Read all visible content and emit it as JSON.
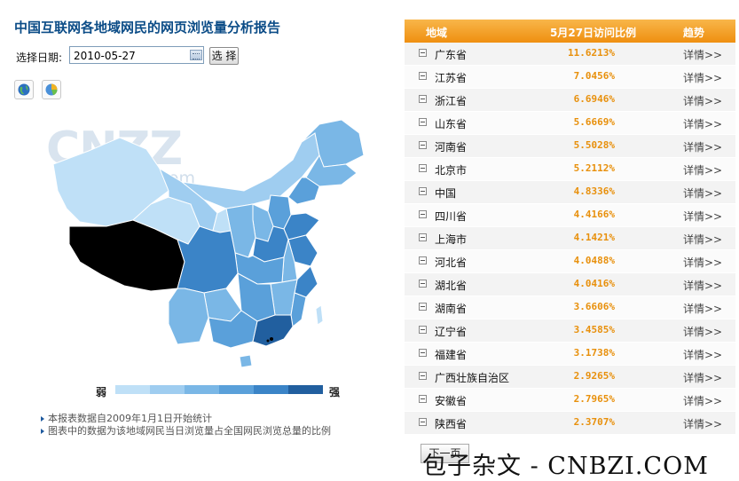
{
  "page": {
    "title": "中国互联网各地域网民的网页浏览量分析报告",
    "date_label": "选择日期:",
    "date_value": "2010-05-27",
    "select_button": "选 择"
  },
  "map": {
    "watermark_logo": "CNZZ",
    "watermark_url": "www.cnzz.com",
    "legend_weak": "弱",
    "legend_strong": "强",
    "legend_colors": [
      "#bfe0f7",
      "#9fcdf0",
      "#7ab7e6",
      "#5aa0da",
      "#3b84c7",
      "#215f9f"
    ],
    "highlight_color": "#000000"
  },
  "notes": [
    "本报表数据自2009年1月1日开始统计",
    "图表中的数据为该地域网民当日浏览量占全国网民浏览总量的比例"
  ],
  "table": {
    "headers": {
      "region": "地域",
      "ratio": "5月27日访问比例",
      "trend": "趋势"
    },
    "rows": [
      {
        "region": "广东省",
        "pct": "11.6213%",
        "trend": "详情>>"
      },
      {
        "region": "江苏省",
        "pct": "7.0456%",
        "trend": "详情>>"
      },
      {
        "region": "浙江省",
        "pct": "6.6946%",
        "trend": "详情>>"
      },
      {
        "region": "山东省",
        "pct": "5.6669%",
        "trend": "详情>>"
      },
      {
        "region": "河南省",
        "pct": "5.5028%",
        "trend": "详情>>"
      },
      {
        "region": "北京市",
        "pct": "5.2112%",
        "trend": "详情>>"
      },
      {
        "region": "中国",
        "pct": "4.8336%",
        "trend": "详情>>"
      },
      {
        "region": "四川省",
        "pct": "4.4166%",
        "trend": "详情>>"
      },
      {
        "region": "上海市",
        "pct": "4.1421%",
        "trend": "详情>>"
      },
      {
        "region": "河北省",
        "pct": "4.0488%",
        "trend": "详情>>"
      },
      {
        "region": "湖北省",
        "pct": "4.0416%",
        "trend": "详情>>"
      },
      {
        "region": "湖南省",
        "pct": "3.6606%",
        "trend": "详情>>"
      },
      {
        "region": "辽宁省",
        "pct": "3.4585%",
        "trend": "详情>>"
      },
      {
        "region": "福建省",
        "pct": "3.1738%",
        "trend": "详情>>"
      },
      {
        "region": "广西壮族自治区",
        "pct": "2.9265%",
        "trend": "详情>>"
      },
      {
        "region": "安徽省",
        "pct": "2.7965%",
        "trend": "详情>>"
      },
      {
        "region": "陕西省",
        "pct": "2.3707%",
        "trend": "详情>>"
      }
    ],
    "pct_color_high": "#e8900c",
    "pct_color_low": "#e8900c",
    "next_button": "下一页"
  },
  "watermark": "包子杂文 - CNBZI.COM",
  "colors": {
    "title": "#0b4c87",
    "header_orange": "#f29a1f",
    "pct": "#e8900c"
  }
}
